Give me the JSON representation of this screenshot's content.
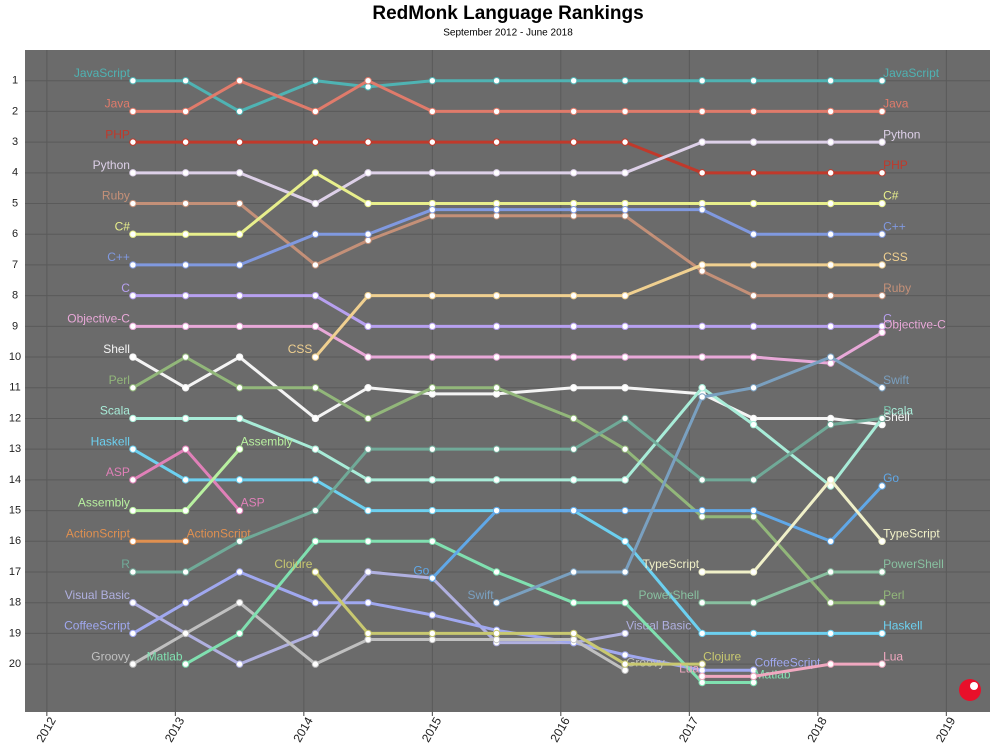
{
  "chart_data": {
    "type": "line",
    "title": "RedMonk Language Rankings",
    "subtitle": "September 2012 - June 2018",
    "x": [
      2012.67,
      2013.08,
      2013.5,
      2014.09,
      2014.5,
      2015.0,
      2015.5,
      2016.1,
      2016.5,
      2017.1,
      2017.5,
      2018.1,
      2018.5
    ],
    "xlim": [
      2011.83,
      2019.34
    ],
    "xticks": [
      2012,
      2013,
      2014,
      2015,
      2016,
      2017,
      2018,
      2019
    ],
    "ylim": [
      21.56,
      0
    ],
    "yticks": [
      1,
      2,
      3,
      4,
      5,
      6,
      7,
      8,
      9,
      10,
      11,
      12,
      13,
      14,
      15,
      16,
      17,
      18,
      19,
      20
    ],
    "grid": true,
    "series": [
      {
        "name": "JavaScript",
        "color": "#4fb3b3",
        "values": [
          1,
          1,
          2,
          1,
          1.2,
          1,
          1,
          1,
          1,
          1,
          1,
          1,
          1
        ]
      },
      {
        "name": "Java",
        "color": "#e07b6b",
        "values": [
          2,
          2,
          1,
          2,
          1,
          2,
          2,
          2,
          2,
          2,
          2,
          2,
          2
        ]
      },
      {
        "name": "PHP",
        "color": "#c0392b",
        "values": [
          3,
          3,
          3,
          3,
          3,
          3,
          3,
          3,
          3,
          4,
          4,
          4,
          4
        ]
      },
      {
        "name": "Python",
        "color": "#ddd0e8",
        "values": [
          4,
          4,
          4,
          5,
          4,
          4,
          4,
          4,
          4,
          3,
          3,
          3,
          3
        ]
      },
      {
        "name": "Ruby",
        "color": "#c49078",
        "values": [
          5,
          5,
          5,
          7,
          6.2,
          5.4,
          5.4,
          5.4,
          5.4,
          7.2,
          8,
          8,
          8
        ]
      },
      {
        "name": "C#",
        "color": "#e8ef8c",
        "values": [
          6,
          6,
          6,
          4,
          5,
          5,
          5,
          5,
          5,
          5,
          5,
          5,
          5
        ]
      },
      {
        "name": "C++",
        "color": "#8099e0",
        "values": [
          7,
          7,
          7,
          6,
          6,
          5.2,
          5.2,
          5.2,
          5.2,
          5.2,
          6,
          6,
          6
        ]
      },
      {
        "name": "C",
        "color": "#b7a0f0",
        "values": [
          8,
          8,
          8,
          8,
          9,
          9,
          9,
          9,
          9,
          9,
          9,
          9,
          9
        ]
      },
      {
        "name": "Objective-C",
        "color": "#e8a8d8",
        "values": [
          9,
          9,
          9,
          9,
          10,
          10,
          10,
          10,
          10,
          10,
          10,
          10.2,
          9.2
        ]
      },
      {
        "name": "CSS",
        "color": "#f0d090",
        "values": [
          null,
          null,
          null,
          10,
          8,
          8,
          8,
          8,
          8,
          7,
          7,
          7,
          7
        ]
      },
      {
        "name": "Shell",
        "color": "#f4f4f4",
        "values": [
          10,
          11,
          10,
          12,
          11,
          11.2,
          11.2,
          11,
          11,
          11.2,
          12,
          12,
          12.2
        ]
      },
      {
        "name": "Perl",
        "color": "#92b77a",
        "values": [
          11,
          10,
          11,
          11,
          12,
          11,
          11,
          12,
          13,
          15.2,
          15.2,
          18,
          18
        ]
      },
      {
        "name": "Scala",
        "color": "#a8ecd8",
        "values": [
          12,
          12,
          12,
          13,
          14,
          14,
          14,
          14,
          14,
          11,
          12.2,
          14.2,
          12
        ]
      },
      {
        "name": "Haskell",
        "color": "#6cd0f0",
        "values": [
          13,
          14,
          14,
          14,
          15,
          15,
          15,
          15,
          16,
          19,
          19,
          19,
          19
        ]
      },
      {
        "name": "ASP",
        "color": "#e080b8",
        "values": [
          14,
          13,
          15,
          null,
          null,
          null,
          null,
          null,
          null,
          null,
          null,
          null,
          null
        ]
      },
      {
        "name": "Assembly",
        "color": "#b8f0a0",
        "values": [
          15,
          15,
          13,
          null,
          null,
          null,
          null,
          null,
          null,
          null,
          null,
          null,
          null
        ]
      },
      {
        "name": "ActionScript",
        "color": "#e09050",
        "values": [
          16,
          16,
          null,
          null,
          null,
          null,
          null,
          null,
          null,
          null,
          null,
          null,
          null
        ]
      },
      {
        "name": "R",
        "color": "#70aa98",
        "values": [
          17,
          17,
          16,
          15,
          13,
          13,
          13,
          13,
          12,
          14,
          14,
          12.2,
          12
        ]
      },
      {
        "name": "Visual Basic",
        "color": "#b0b0e0",
        "values": [
          18,
          19,
          20,
          19,
          17,
          17.2,
          19.3,
          19.3,
          19,
          null,
          null,
          null,
          null
        ]
      },
      {
        "name": "CoffeeScript",
        "color": "#a0a8f0",
        "values": [
          19,
          18,
          17,
          18,
          18,
          18.4,
          18.9,
          19.3,
          19.7,
          20.2,
          20.2,
          null,
          null
        ]
      },
      {
        "name": "Groovy",
        "color": "#c0c0c0",
        "values": [
          20,
          19,
          18,
          20,
          19.2,
          19.2,
          19.2,
          19.2,
          20.2,
          null,
          null,
          null,
          null
        ]
      },
      {
        "name": "Matlab",
        "color": "#80e0b0",
        "values": [
          null,
          20,
          19,
          16,
          16,
          16,
          17,
          18,
          18,
          20.6,
          20.6,
          null,
          null
        ]
      },
      {
        "name": "Clojure",
        "color": "#c8c870",
        "values": [
          null,
          null,
          null,
          17,
          19,
          19,
          19,
          19,
          20,
          20,
          null,
          null,
          null
        ]
      },
      {
        "name": "Go",
        "color": "#60a8e8",
        "values": [
          null,
          null,
          null,
          null,
          null,
          17.2,
          15,
          15,
          15,
          15,
          15,
          16,
          14.2
        ]
      },
      {
        "name": "Swift",
        "color": "#7aa0c0",
        "values": [
          null,
          null,
          null,
          null,
          null,
          null,
          18,
          17,
          17,
          11.3,
          11,
          10,
          11
        ]
      },
      {
        "name": "TypeScript",
        "color": "#f0f0c8",
        "values": [
          null,
          null,
          null,
          null,
          null,
          null,
          null,
          null,
          null,
          17,
          17,
          14,
          16
        ]
      },
      {
        "name": "PowerShell",
        "color": "#88c0a0",
        "values": [
          null,
          null,
          null,
          null,
          null,
          null,
          null,
          null,
          null,
          18,
          18,
          17,
          17
        ]
      },
      {
        "name": "Lua",
        "color": "#f0a8c0",
        "values": [
          null,
          null,
          null,
          null,
          null,
          null,
          null,
          null,
          null,
          20.4,
          20.4,
          20,
          20
        ]
      }
    ]
  }
}
